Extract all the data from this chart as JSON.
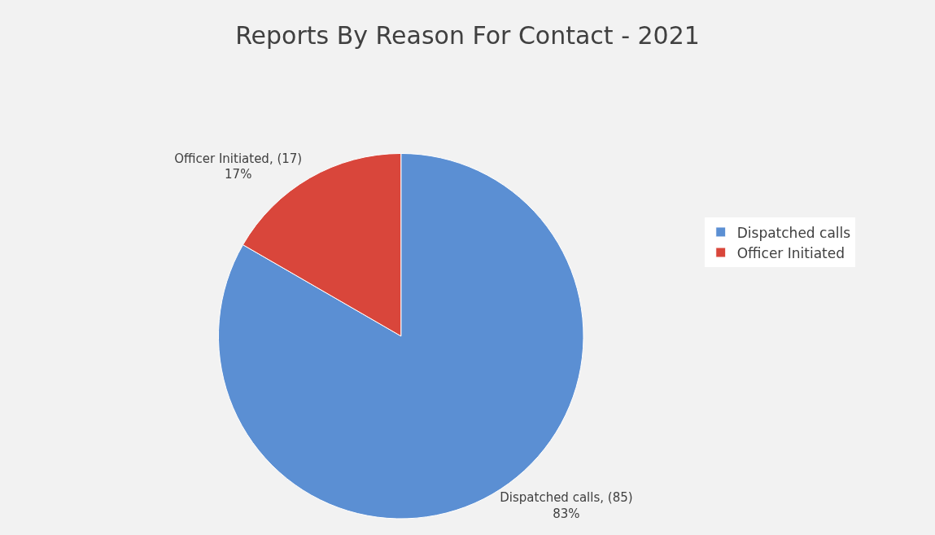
{
  "chart_data": {
    "type": "pie",
    "title": "Reports By Reason For Contact - 2021",
    "categories": [
      "Dispatched calls",
      "Officer Initiated"
    ],
    "values": [
      85,
      17
    ],
    "colors": [
      "#5b8fd3",
      "#d9463b"
    ],
    "value_labels": [
      "Dispatched calls, (85)\n83%",
      "Officer Initiated, (17)\n17%"
    ],
    "legend": "right"
  }
}
